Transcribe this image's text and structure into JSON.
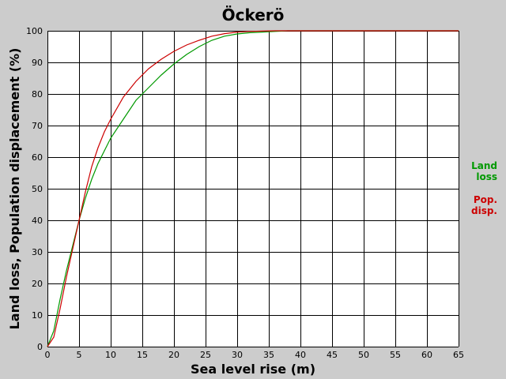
{
  "chart_data": {
    "type": "line",
    "title": "Öckerö",
    "xlabel": "Sea level rise (m)",
    "ylabel": "Land loss, Population displacement (%)",
    "xlim": [
      0,
      65
    ],
    "ylim": [
      0,
      100
    ],
    "x_ticks": [
      0,
      5,
      10,
      15,
      20,
      25,
      30,
      35,
      40,
      45,
      50,
      55,
      60,
      65
    ],
    "y_ticks": [
      0,
      10,
      20,
      30,
      40,
      50,
      60,
      70,
      80,
      90,
      100
    ],
    "grid": true,
    "background": "#ffffff",
    "legend_placement": "right",
    "series": [
      {
        "name": "Land loss",
        "legend_lines": [
          "Land",
          "loss"
        ],
        "color": "#009900",
        "x": [
          0,
          1,
          2,
          3,
          4,
          5,
          6,
          7,
          8,
          9,
          10,
          12,
          14,
          16,
          18,
          20,
          22,
          24,
          26,
          28,
          30,
          32,
          34,
          36,
          38,
          40,
          65
        ],
        "y": [
          0,
          5,
          15,
          24,
          32,
          40,
          47,
          53,
          58,
          62,
          66,
          72,
          78,
          82,
          86,
          89.5,
          92.5,
          95,
          97,
          98.3,
          99,
          99.4,
          99.6,
          99.8,
          100,
          100,
          100
        ]
      },
      {
        "name": "Pop. disp.",
        "legend_lines": [
          "Pop.",
          "disp."
        ],
        "color": "#cc0000",
        "x": [
          0,
          1,
          2,
          3,
          4,
          5,
          6,
          7,
          8,
          9,
          10,
          12,
          14,
          16,
          18,
          20,
          22,
          24,
          26,
          28,
          30,
          32,
          34,
          36,
          38,
          40,
          65
        ],
        "y": [
          0,
          3,
          12,
          22,
          31,
          40,
          49,
          57,
          63,
          68,
          72,
          79,
          84,
          88,
          91,
          93.5,
          95.5,
          97,
          98.3,
          99.1,
          99.6,
          99.8,
          99.9,
          100,
          100,
          100,
          100
        ]
      }
    ]
  }
}
